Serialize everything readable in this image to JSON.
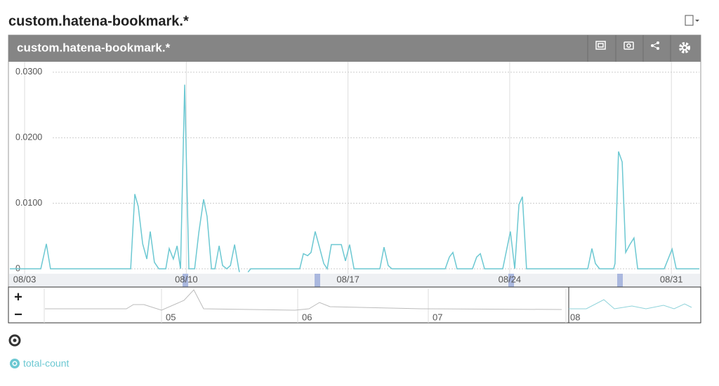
{
  "chart_data": {
    "type": "line",
    "title": "custom.hatena-bookmark.*",
    "x": [
      2.36,
      3.7,
      3.94,
      4.12,
      7.59,
      7.77,
      7.92,
      8.11,
      8.29,
      8.44,
      8.62,
      8.81,
      9.11,
      9.26,
      9.44,
      9.6,
      9.75,
      9.93,
      10.11,
      10.36,
      10.54,
      10.75,
      10.9,
      11.09,
      11.24,
      11.42,
      11.57,
      11.75,
      11.91,
      12.09,
      12.27,
      12.3,
      12.5,
      12.67,
      12.79,
      14.91,
      15.07,
      15.25,
      15.4,
      15.58,
      15.77,
      15.95,
      16.1,
      16.28,
      16.5,
      16.71,
      16.89,
      17.07,
      17.26,
      18.38,
      18.56,
      18.74,
      18.9,
      21.21,
      21.39,
      21.54,
      21.72,
      22.39,
      22.57,
      22.73,
      22.91,
      23.7,
      24.03,
      24.22,
      24.4,
      24.55,
      24.73,
      27.38,
      27.56,
      27.71,
      27.89,
      28.5,
      28.56,
      28.71,
      28.87,
      29.02,
      29.2,
      29.38,
      29.54,
      30.69,
      31.03,
      31.21,
      32.21
    ],
    "series": [
      {
        "name": "total-count",
        "color": "#6cc8d2",
        "values": [
          0,
          0,
          0.0038,
          0,
          0,
          0.0114,
          0.0095,
          0.0038,
          0.0015,
          0.0057,
          0.001,
          0,
          0,
          0.0031,
          0.0015,
          0.0035,
          0,
          0.0281,
          0,
          0,
          0.0055,
          0.0106,
          0.008,
          0,
          0,
          0.0035,
          0.0005,
          0,
          0.0005,
          0.0037,
          0,
          -0.0005,
          null,
          -0.0005,
          0,
          0,
          0.0023,
          0.002,
          0.0025,
          0.0057,
          0.0032,
          0.0008,
          0,
          0.0037,
          0.0037,
          0.0037,
          0.0012,
          0.0037,
          0,
          0,
          0.0033,
          0.0005,
          0,
          0,
          0.0018,
          0.0025,
          0,
          0,
          0.0018,
          0.0023,
          0,
          0,
          0.0057,
          0,
          0.0098,
          0.011,
          0,
          0,
          0.0031,
          0.0008,
          0,
          0,
          0.0008,
          0.0179,
          0.0163,
          0.0025,
          0.0037,
          0.0047,
          0,
          0,
          0.003,
          0,
          0
        ]
      }
    ],
    "xlim": [
      2.36,
      32.21
    ],
    "xticks": [
      {
        "value": 3,
        "label": "08/03"
      },
      {
        "value": 10,
        "label": "08/10"
      },
      {
        "value": 17,
        "label": "08/17"
      },
      {
        "value": 24,
        "label": "08/24"
      },
      {
        "value": 31,
        "label": "08/31"
      }
    ],
    "ylim": [
      -0.00075,
      0.0316
    ],
    "yticks": [
      0,
      {
        "value": 0.01,
        "label": "0.0100"
      },
      {
        "value": 0.02,
        "label": "0.0200"
      },
      {
        "value": 0.03,
        "label": "0.0300"
      }
    ],
    "grid": true
  },
  "navigator": {
    "labels": [
      "05",
      "06",
      "07",
      "08"
    ],
    "zoom_in": "+",
    "zoom_out": "−"
  }
}
